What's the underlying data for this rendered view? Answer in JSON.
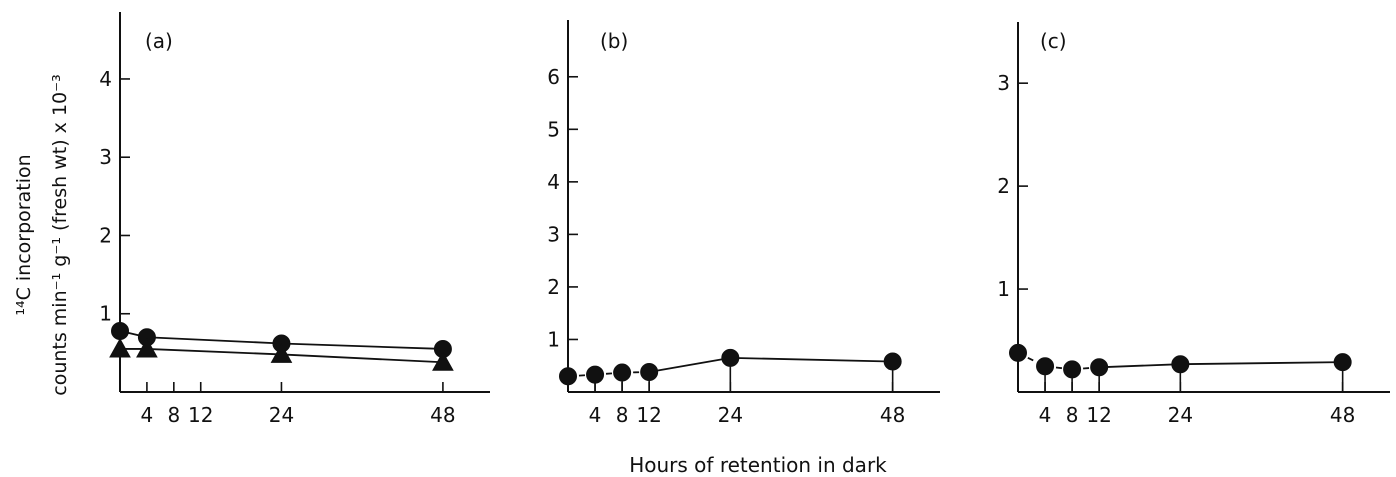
{
  "figure": {
    "ylabel_line1": "¹⁴C incorporation",
    "ylabel_line2": "counts min⁻¹ g⁻¹ (fresh wt) x 10⁻³",
    "xlabel": "Hours of retention in dark"
  },
  "chart_data": [
    {
      "panel": "(a)",
      "type": "line",
      "x_ticks": [
        4,
        8,
        12,
        24,
        48
      ],
      "y_ticks": [
        1,
        2,
        3,
        4
      ],
      "xlim": [
        0,
        55
      ],
      "ylim": [
        0,
        4.6
      ],
      "series": [
        {
          "marker": "circle",
          "x": [
            0,
            4,
            24,
            48
          ],
          "y": [
            0.78,
            0.7,
            0.62,
            0.55
          ],
          "style": "solid",
          "stems": false
        },
        {
          "marker": "triangle",
          "x": [
            0,
            4,
            24,
            48
          ],
          "y": [
            0.55,
            0.55,
            0.48,
            0.38
          ],
          "style": "solid",
          "stems": false
        }
      ]
    },
    {
      "panel": "(b)",
      "type": "line",
      "x_ticks": [
        4,
        8,
        12,
        24,
        48
      ],
      "y_ticks": [
        1,
        2,
        3,
        4,
        5,
        6
      ],
      "xlim": [
        0,
        55
      ],
      "ylim": [
        0,
        6.7
      ],
      "series": [
        {
          "marker": "circle",
          "x": [
            0,
            4,
            8,
            12,
            24,
            48
          ],
          "y": [
            0.3,
            0.33,
            0.37,
            0.38,
            0.65,
            0.58
          ],
          "style": "mixed",
          "stems": true
        }
      ]
    },
    {
      "panel": "(c)",
      "type": "line",
      "x_ticks": [
        4,
        8,
        12,
        24,
        48
      ],
      "y_ticks": [
        1,
        2,
        3
      ],
      "xlim": [
        0,
        55
      ],
      "ylim": [
        0,
        3.4
      ],
      "series": [
        {
          "marker": "circle",
          "x": [
            0,
            4,
            8,
            12,
            24,
            48
          ],
          "y": [
            0.38,
            0.25,
            0.22,
            0.24,
            0.27,
            0.29
          ],
          "style": "mixed",
          "stems": true
        }
      ]
    }
  ]
}
